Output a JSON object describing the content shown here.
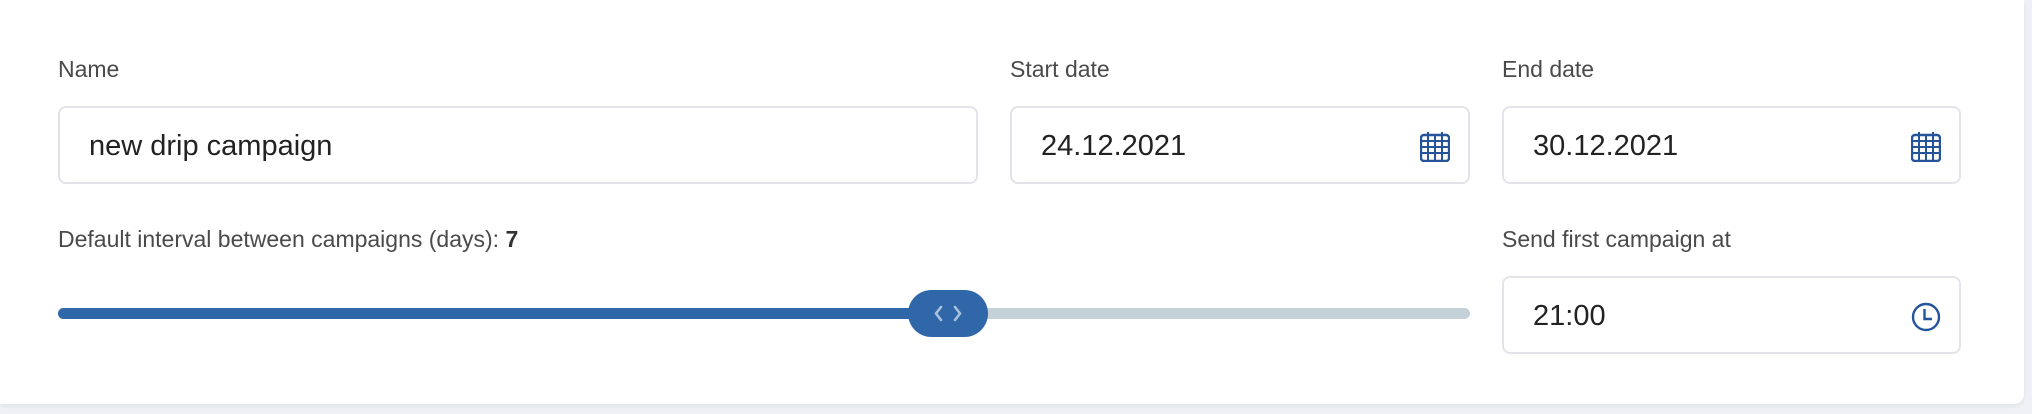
{
  "name": {
    "label": "Name",
    "value": "new drip campaign"
  },
  "start_date": {
    "label": "Start date",
    "value": "24.12.2021",
    "icon": "calendar-icon"
  },
  "end_date": {
    "label": "End date",
    "value": "30.12.2021",
    "icon": "calendar-icon"
  },
  "interval": {
    "label": "Default interval between campaigns (days):",
    "value": "7",
    "fill_fraction": 0.63
  },
  "send_time": {
    "label": "Send first campaign at",
    "value": "21:00",
    "icon": "clock-icon"
  },
  "colors": {
    "accent": "#2f67a8",
    "track": "#c5d1d9",
    "icon": "#24549a"
  }
}
